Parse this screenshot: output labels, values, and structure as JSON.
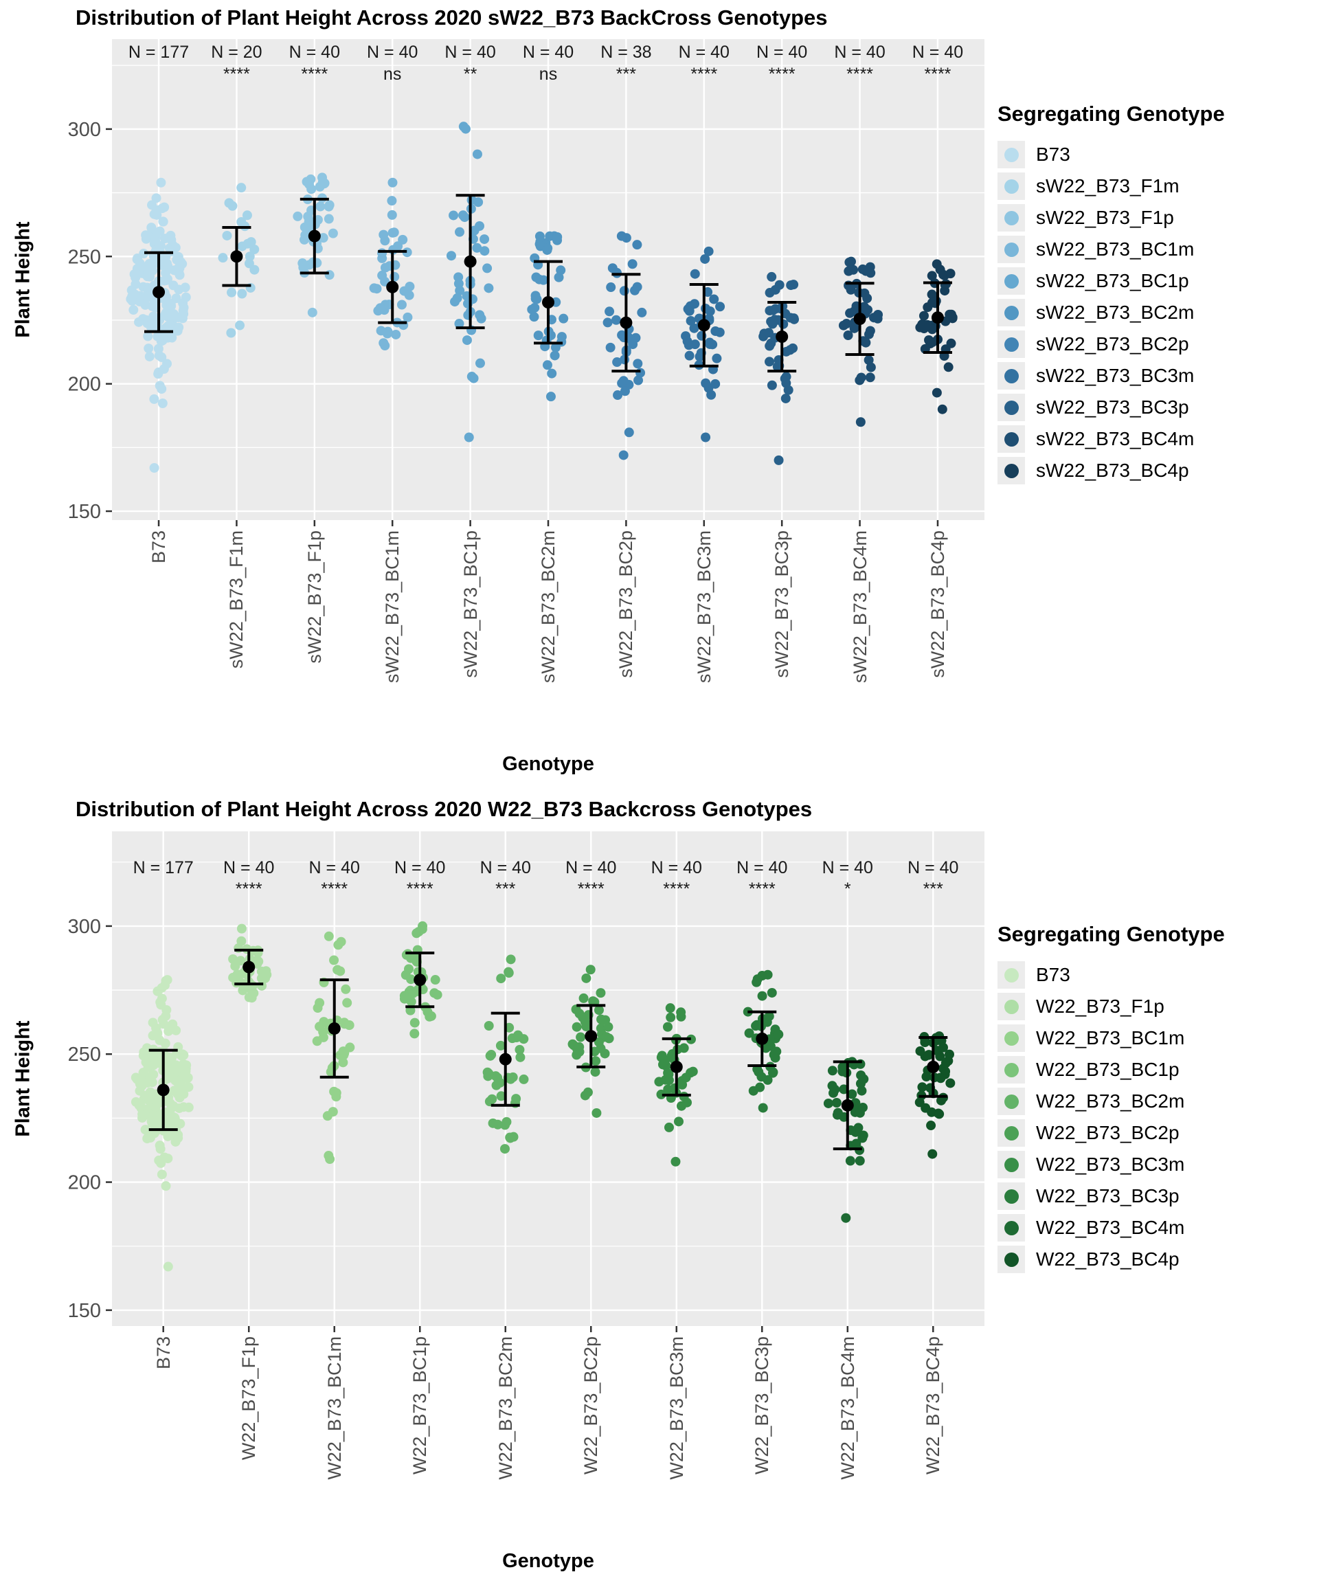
{
  "style": {
    "panel_background": "#ebebeb",
    "gridline_color": "#ffffff",
    "tick_text_color": "#4d4d4d",
    "point_outline": "none",
    "error_bar_color": "#000000",
    "legend_key_background": "#ececec"
  },
  "chart_data": [
    {
      "type": "jitter",
      "title": "Distribution of Plant Height Across 2020 sW22_B73 BackCross Genotypes",
      "xlabel": "Genotype",
      "ylabel": "Plant Height",
      "legend_title": "Segregating Genotype",
      "legend_position": "right",
      "error_bar": "mean_plus_minus_sd",
      "grid": "on",
      "yticks": [
        150,
        200,
        250,
        300
      ],
      "yticks_minor": [
        175,
        225,
        275,
        325
      ],
      "ylim": [
        146.5,
        335.3
      ],
      "groups": [
        {
          "label": "B73",
          "n": 177,
          "n_label": "N = 177",
          "significance": "",
          "color": "#b9ddee",
          "mean": 236,
          "sd": 15.5,
          "points_min": 167,
          "points_max": 279
        },
        {
          "label": "sW22_B73_F1m",
          "n": 20,
          "n_label": "N = 20",
          "significance": "****",
          "color": "#a4d3e8",
          "mean": 250,
          "sd": 11.4,
          "points_min": 220,
          "points_max": 277
        },
        {
          "label": "sW22_B73_F1p",
          "n": 40,
          "n_label": "N = 40",
          "significance": "****",
          "color": "#8ec5e1",
          "mean": 258,
          "sd": 14.5,
          "points_min": 228,
          "points_max": 281
        },
        {
          "label": "sW22_B73_BC1m",
          "n": 40,
          "n_label": "N = 40",
          "significance": "ns",
          "color": "#79b6d9",
          "mean": 238,
          "sd": 14,
          "points_min": 215,
          "points_max": 279
        },
        {
          "label": "sW22_B73_BC1p",
          "n": 40,
          "n_label": "N = 40",
          "significance": "**",
          "color": "#65a8d0",
          "mean": 248,
          "sd": 26,
          "points_min": 179,
          "points_max": 301
        },
        {
          "label": "sW22_B73_BC2m",
          "n": 40,
          "n_label": "N = 40",
          "significance": "ns",
          "color": "#5297c3",
          "mean": 232,
          "sd": 16,
          "points_min": 195,
          "points_max": 258
        },
        {
          "label": "sW22_B73_BC2p",
          "n": 38,
          "n_label": "N = 38",
          "significance": "***",
          "color": "#4285b5",
          "mean": 224,
          "sd": 19,
          "points_min": 172,
          "points_max": 258
        },
        {
          "label": "sW22_B73_BC3m",
          "n": 40,
          "n_label": "N = 40",
          "significance": "****",
          "color": "#3372a1",
          "mean": 223,
          "sd": 16,
          "points_min": 179,
          "points_max": 252
        },
        {
          "label": "sW22_B73_BC3p",
          "n": 40,
          "n_label": "N = 40",
          "significance": "****",
          "color": "#28608a",
          "mean": 218.5,
          "sd": 13.5,
          "points_min": 170,
          "points_max": 242
        },
        {
          "label": "sW22_B73_BC4m",
          "n": 40,
          "n_label": "N = 40",
          "significance": "****",
          "color": "#1e4e72",
          "mean": 225.5,
          "sd": 14,
          "points_min": 185,
          "points_max": 248
        },
        {
          "label": "sW22_B73_BC4p",
          "n": 40,
          "n_label": "N = 40",
          "significance": "****",
          "color": "#163e5a",
          "mean": 226,
          "sd": 13.7,
          "points_min": 190,
          "points_max": 247
        }
      ]
    },
    {
      "type": "jitter",
      "title": "Distribution of Plant Height Across 2020 W22_B73 Backcross Genotypes",
      "xlabel": "Genotype",
      "ylabel": "Plant Height",
      "legend_title": "Segregating Genotype",
      "legend_position": "right",
      "error_bar": "mean_plus_minus_sd",
      "grid": "on",
      "yticks": [
        150,
        200,
        250,
        300
      ],
      "yticks_minor": [
        175,
        225,
        275,
        325
      ],
      "ylim": [
        143.8,
        337.0
      ],
      "groups": [
        {
          "label": "B73",
          "n": 177,
          "n_label": "N = 177",
          "significance": "",
          "color": "#c7e9c0",
          "mean": 236,
          "sd": 15.5,
          "points_min": 167,
          "points_max": 279
        },
        {
          "label": "W22_B73_F1p",
          "n": 40,
          "n_label": "N = 40",
          "significance": "****",
          "color": "#aedea6",
          "mean": 284,
          "sd": 6.6,
          "points_min": 272,
          "points_max": 299
        },
        {
          "label": "W22_B73_BC1m",
          "n": 40,
          "n_label": "N = 40",
          "significance": "****",
          "color": "#94d28c",
          "mean": 260,
          "sd": 19,
          "points_min": 209,
          "points_max": 296
        },
        {
          "label": "W22_B73_BC1p",
          "n": 40,
          "n_label": "N = 40",
          "significance": "****",
          "color": "#7bc47a",
          "mean": 279,
          "sd": 10.5,
          "points_min": 258,
          "points_max": 300
        },
        {
          "label": "W22_B73_BC2m",
          "n": 40,
          "n_label": "N = 40",
          "significance": "***",
          "color": "#63b368",
          "mean": 248,
          "sd": 18,
          "points_min": 213,
          "points_max": 287
        },
        {
          "label": "W22_B73_BC2p",
          "n": 40,
          "n_label": "N = 40",
          "significance": "****",
          "color": "#4ca156",
          "mean": 257,
          "sd": 12,
          "points_min": 227,
          "points_max": 283
        },
        {
          "label": "W22_B73_BC3m",
          "n": 40,
          "n_label": "N = 40",
          "significance": "****",
          "color": "#398f48",
          "mean": 245,
          "sd": 11,
          "points_min": 208,
          "points_max": 268
        },
        {
          "label": "W22_B73_BC3p",
          "n": 40,
          "n_label": "N = 40",
          "significance": "****",
          "color": "#2a7d3d",
          "mean": 256,
          "sd": 10.5,
          "points_min": 229,
          "points_max": 281
        },
        {
          "label": "W22_B73_BC4m",
          "n": 40,
          "n_label": "N = 40",
          "significance": "*",
          "color": "#1d6a33",
          "mean": 230,
          "sd": 17,
          "points_min": 186,
          "points_max": 247
        },
        {
          "label": "W22_B73_BC4p",
          "n": 40,
          "n_label": "N = 40",
          "significance": "***",
          "color": "#115427",
          "mean": 245,
          "sd": 11.5,
          "points_min": 211,
          "points_max": 257
        }
      ]
    }
  ]
}
